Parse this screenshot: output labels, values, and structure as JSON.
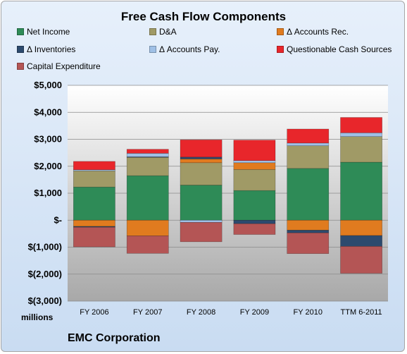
{
  "chart_data": {
    "type": "bar",
    "stacked": true,
    "title": "Free Cash Flow Components",
    "ylabel": "millions",
    "footer": "EMC Corporation",
    "ylim": [
      -3000,
      5000
    ],
    "yticks": [
      5000,
      4000,
      3000,
      2000,
      1000,
      0,
      -1000,
      -2000,
      -3000
    ],
    "ytick_labels": [
      "$5,000",
      "$4,000",
      "$3,000",
      "$2,000",
      "$1,000",
      "$-",
      "$(1,000)",
      "$(2,000)",
      "$(3,000)"
    ],
    "grid": true,
    "legend_position": "top",
    "categories": [
      "FY 2006",
      "FY 2007",
      "FY 2008",
      "FY 2009",
      "FY 2010",
      "TTM 6-2011"
    ],
    "series": [
      {
        "name": "Net Income",
        "color": "#2e8b57",
        "values": [
          1230,
          1650,
          1300,
          1100,
          1920,
          2150
        ]
      },
      {
        "name": "D&A",
        "color": "#a09a66",
        "values": [
          600,
          680,
          830,
          780,
          840,
          950
        ]
      },
      {
        "name": "Δ Accounts Rec.",
        "color": "#e07b1f",
        "values": [
          -230,
          -580,
          140,
          250,
          -370,
          -570
        ]
      },
      {
        "name": "Δ Inventories",
        "color": "#2c4a6e",
        "values": [
          -30,
          20,
          70,
          -130,
          -100,
          -400
        ]
      },
      {
        "name": "Δ Accounts Pay.",
        "color": "#9fc0e6",
        "values": [
          40,
          130,
          -80,
          80,
          100,
          140
        ]
      },
      {
        "name": "Questionable Cash Sources",
        "color": "#e8262b",
        "values": [
          310,
          150,
          640,
          760,
          520,
          570
        ]
      },
      {
        "name": "Capital Expenditure",
        "color": "#b45555",
        "values": [
          -730,
          -650,
          -720,
          -400,
          -770,
          -1000
        ]
      }
    ]
  }
}
